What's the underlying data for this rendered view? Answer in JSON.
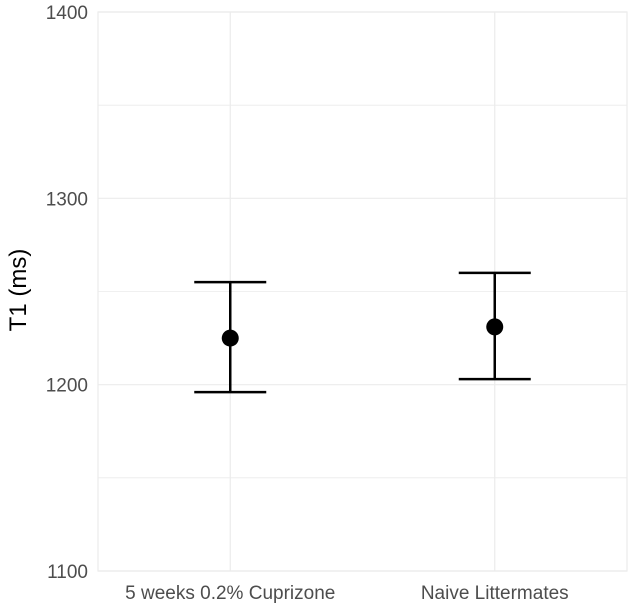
{
  "chart_data": {
    "type": "scatter",
    "title": "",
    "xlabel": "",
    "ylabel": "T1 (ms)",
    "categories": [
      "5 weeks 0.2% Cuprizone",
      "Naive Littermates"
    ],
    "series": [
      {
        "values": [
          1225,
          1231
        ],
        "error_low": [
          1196,
          1203
        ],
        "error_high": [
          1255,
          1260
        ]
      }
    ],
    "ylim": [
      1100,
      1400
    ],
    "yticks": [
      1100,
      1200,
      1300,
      1400
    ],
    "y_minor_ticks": [
      1150,
      1250,
      1350
    ],
    "grid": true,
    "legend": "none",
    "colors": {
      "grid": "#ebebeb",
      "marks": "#000000",
      "tick_text": "#4d4d4d",
      "background": "#ffffff"
    }
  }
}
